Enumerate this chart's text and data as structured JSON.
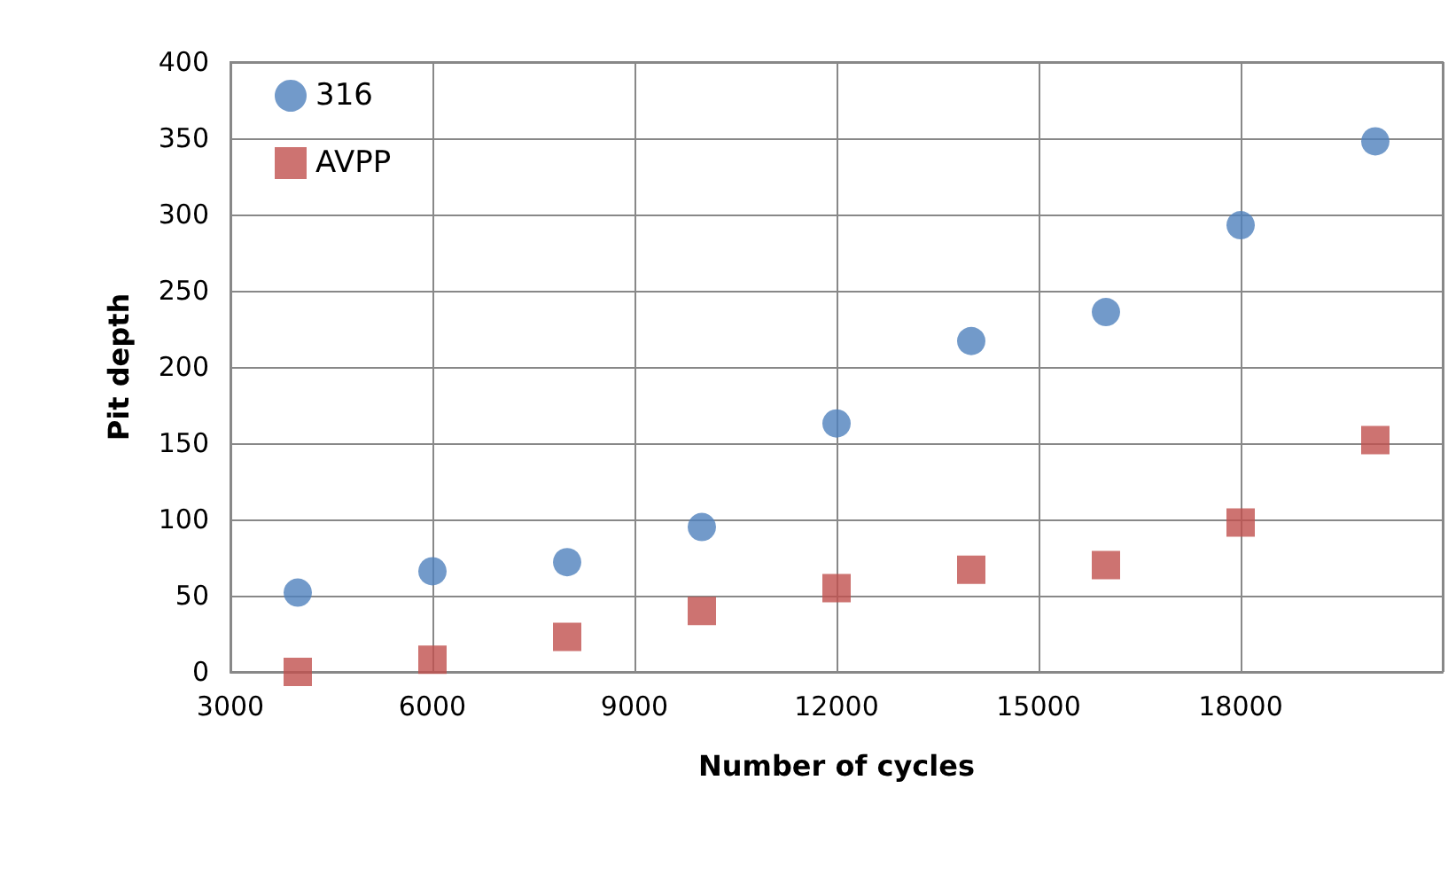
{
  "chart_data": {
    "type": "scatter",
    "xlabel": "Number of cycles",
    "ylabel": "Pit depth",
    "x": [
      4000,
      6000,
      8000,
      10000,
      12000,
      14000,
      16000,
      18000,
      20000
    ],
    "series": [
      {
        "name": "316",
        "color": "#4f81bd",
        "marker": "circle",
        "values": [
          52,
          66,
          72,
          95,
          163,
          217,
          236,
          293,
          348
        ]
      },
      {
        "name": "AVPP",
        "color": "#c0504d",
        "marker": "square",
        "values": [
          0,
          8,
          23,
          40,
          55,
          67,
          70,
          98,
          152
        ]
      }
    ],
    "xlim": [
      3000,
      21000
    ],
    "xticks": [
      3000,
      6000,
      9000,
      12000,
      15000,
      18000,
      {
        "value": 21000,
        "label": null
      }
    ],
    "ylim": [
      0,
      400
    ],
    "yticks": [
      0,
      50,
      100,
      150,
      200,
      250,
      300,
      350,
      400
    ],
    "grid": true,
    "legend": "top left"
  }
}
